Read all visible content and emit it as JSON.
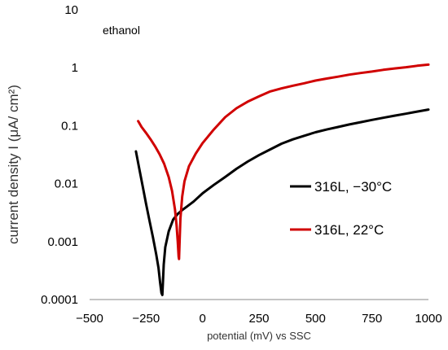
{
  "chart_data": {
    "type": "line",
    "title": "",
    "annotation": "ethanol",
    "xlabel": "potential (mV) vs SSC",
    "ylabel": "current density I (μA/ cm²)",
    "xlim": [
      -500,
      1000
    ],
    "ylim": [
      0.0001,
      10
    ],
    "yscale": "log",
    "grid": false,
    "x_ticks": [
      {
        "value": -500,
        "label": "−500"
      },
      {
        "value": -250,
        "label": "−250"
      },
      {
        "value": 0,
        "label": "0"
      },
      {
        "value": 250,
        "label": "250"
      },
      {
        "value": 500,
        "label": "500"
      },
      {
        "value": 750,
        "label": "750"
      },
      {
        "value": 1000,
        "label": "1000"
      }
    ],
    "y_ticks": [
      {
        "value": 10,
        "label": "10"
      },
      {
        "value": 1,
        "label": "1"
      },
      {
        "value": 0.1,
        "label": "0.1"
      },
      {
        "value": 0.01,
        "label": "0.01"
      },
      {
        "value": 0.001,
        "label": "0.001"
      },
      {
        "value": 0.0001,
        "label": "0.0001"
      }
    ],
    "legend_position": "right",
    "series": [
      {
        "name": "316L, −30°C",
        "color": "#000000",
        "points": [
          [
            -295,
            0.036
          ],
          [
            -280,
            0.018
          ],
          [
            -265,
            0.009
          ],
          [
            -250,
            0.0045
          ],
          [
            -235,
            0.0023
          ],
          [
            -220,
            0.0012
          ],
          [
            -205,
            0.0006
          ],
          [
            -195,
            0.00035
          ],
          [
            -188,
            0.0002
          ],
          [
            -182,
            0.00013
          ],
          [
            -178,
            0.00012
          ],
          [
            -176,
            0.00018
          ],
          [
            -172,
            0.0004
          ],
          [
            -165,
            0.0008
          ],
          [
            -150,
            0.0015
          ],
          [
            -130,
            0.0024
          ],
          [
            -110,
            0.003
          ],
          [
            -90,
            0.0035
          ],
          [
            -70,
            0.004
          ],
          [
            -40,
            0.0049
          ],
          [
            0,
            0.0068
          ],
          [
            50,
            0.0095
          ],
          [
            100,
            0.013
          ],
          [
            150,
            0.018
          ],
          [
            200,
            0.024
          ],
          [
            250,
            0.031
          ],
          [
            300,
            0.039
          ],
          [
            350,
            0.049
          ],
          [
            400,
            0.058
          ],
          [
            450,
            0.067
          ],
          [
            500,
            0.077
          ],
          [
            550,
            0.086
          ],
          [
            600,
            0.095
          ],
          [
            650,
            0.105
          ],
          [
            700,
            0.115
          ],
          [
            750,
            0.126
          ],
          [
            800,
            0.137
          ],
          [
            850,
            0.149
          ],
          [
            900,
            0.161
          ],
          [
            950,
            0.175
          ],
          [
            1000,
            0.19
          ]
        ]
      },
      {
        "name": "316L, 22°C",
        "color": "#d00000",
        "points": [
          [
            -285,
            0.12
          ],
          [
            -270,
            0.095
          ],
          [
            -250,
            0.075
          ],
          [
            -230,
            0.058
          ],
          [
            -210,
            0.044
          ],
          [
            -190,
            0.032
          ],
          [
            -170,
            0.022
          ],
          [
            -150,
            0.013
          ],
          [
            -135,
            0.0075
          ],
          [
            -122,
            0.0036
          ],
          [
            -115,
            0.0019
          ],
          [
            -110,
            0.001
          ],
          [
            -106,
            0.00055
          ],
          [
            -104,
            0.0005
          ],
          [
            -102,
            0.0009
          ],
          [
            -98,
            0.0025
          ],
          [
            -90,
            0.006
          ],
          [
            -80,
            0.011
          ],
          [
            -60,
            0.02
          ],
          [
            -30,
            0.033
          ],
          [
            0,
            0.05
          ],
          [
            50,
            0.086
          ],
          [
            100,
            0.14
          ],
          [
            150,
            0.2
          ],
          [
            200,
            0.26
          ],
          [
            250,
            0.32
          ],
          [
            300,
            0.39
          ],
          [
            350,
            0.44
          ],
          [
            400,
            0.49
          ],
          [
            450,
            0.54
          ],
          [
            500,
            0.6
          ],
          [
            550,
            0.65
          ],
          [
            600,
            0.7
          ],
          [
            650,
            0.76
          ],
          [
            700,
            0.81
          ],
          [
            750,
            0.86
          ],
          [
            800,
            0.92
          ],
          [
            850,
            0.97
          ],
          [
            900,
            1.02
          ],
          [
            950,
            1.08
          ],
          [
            1000,
            1.13
          ]
        ]
      }
    ]
  }
}
